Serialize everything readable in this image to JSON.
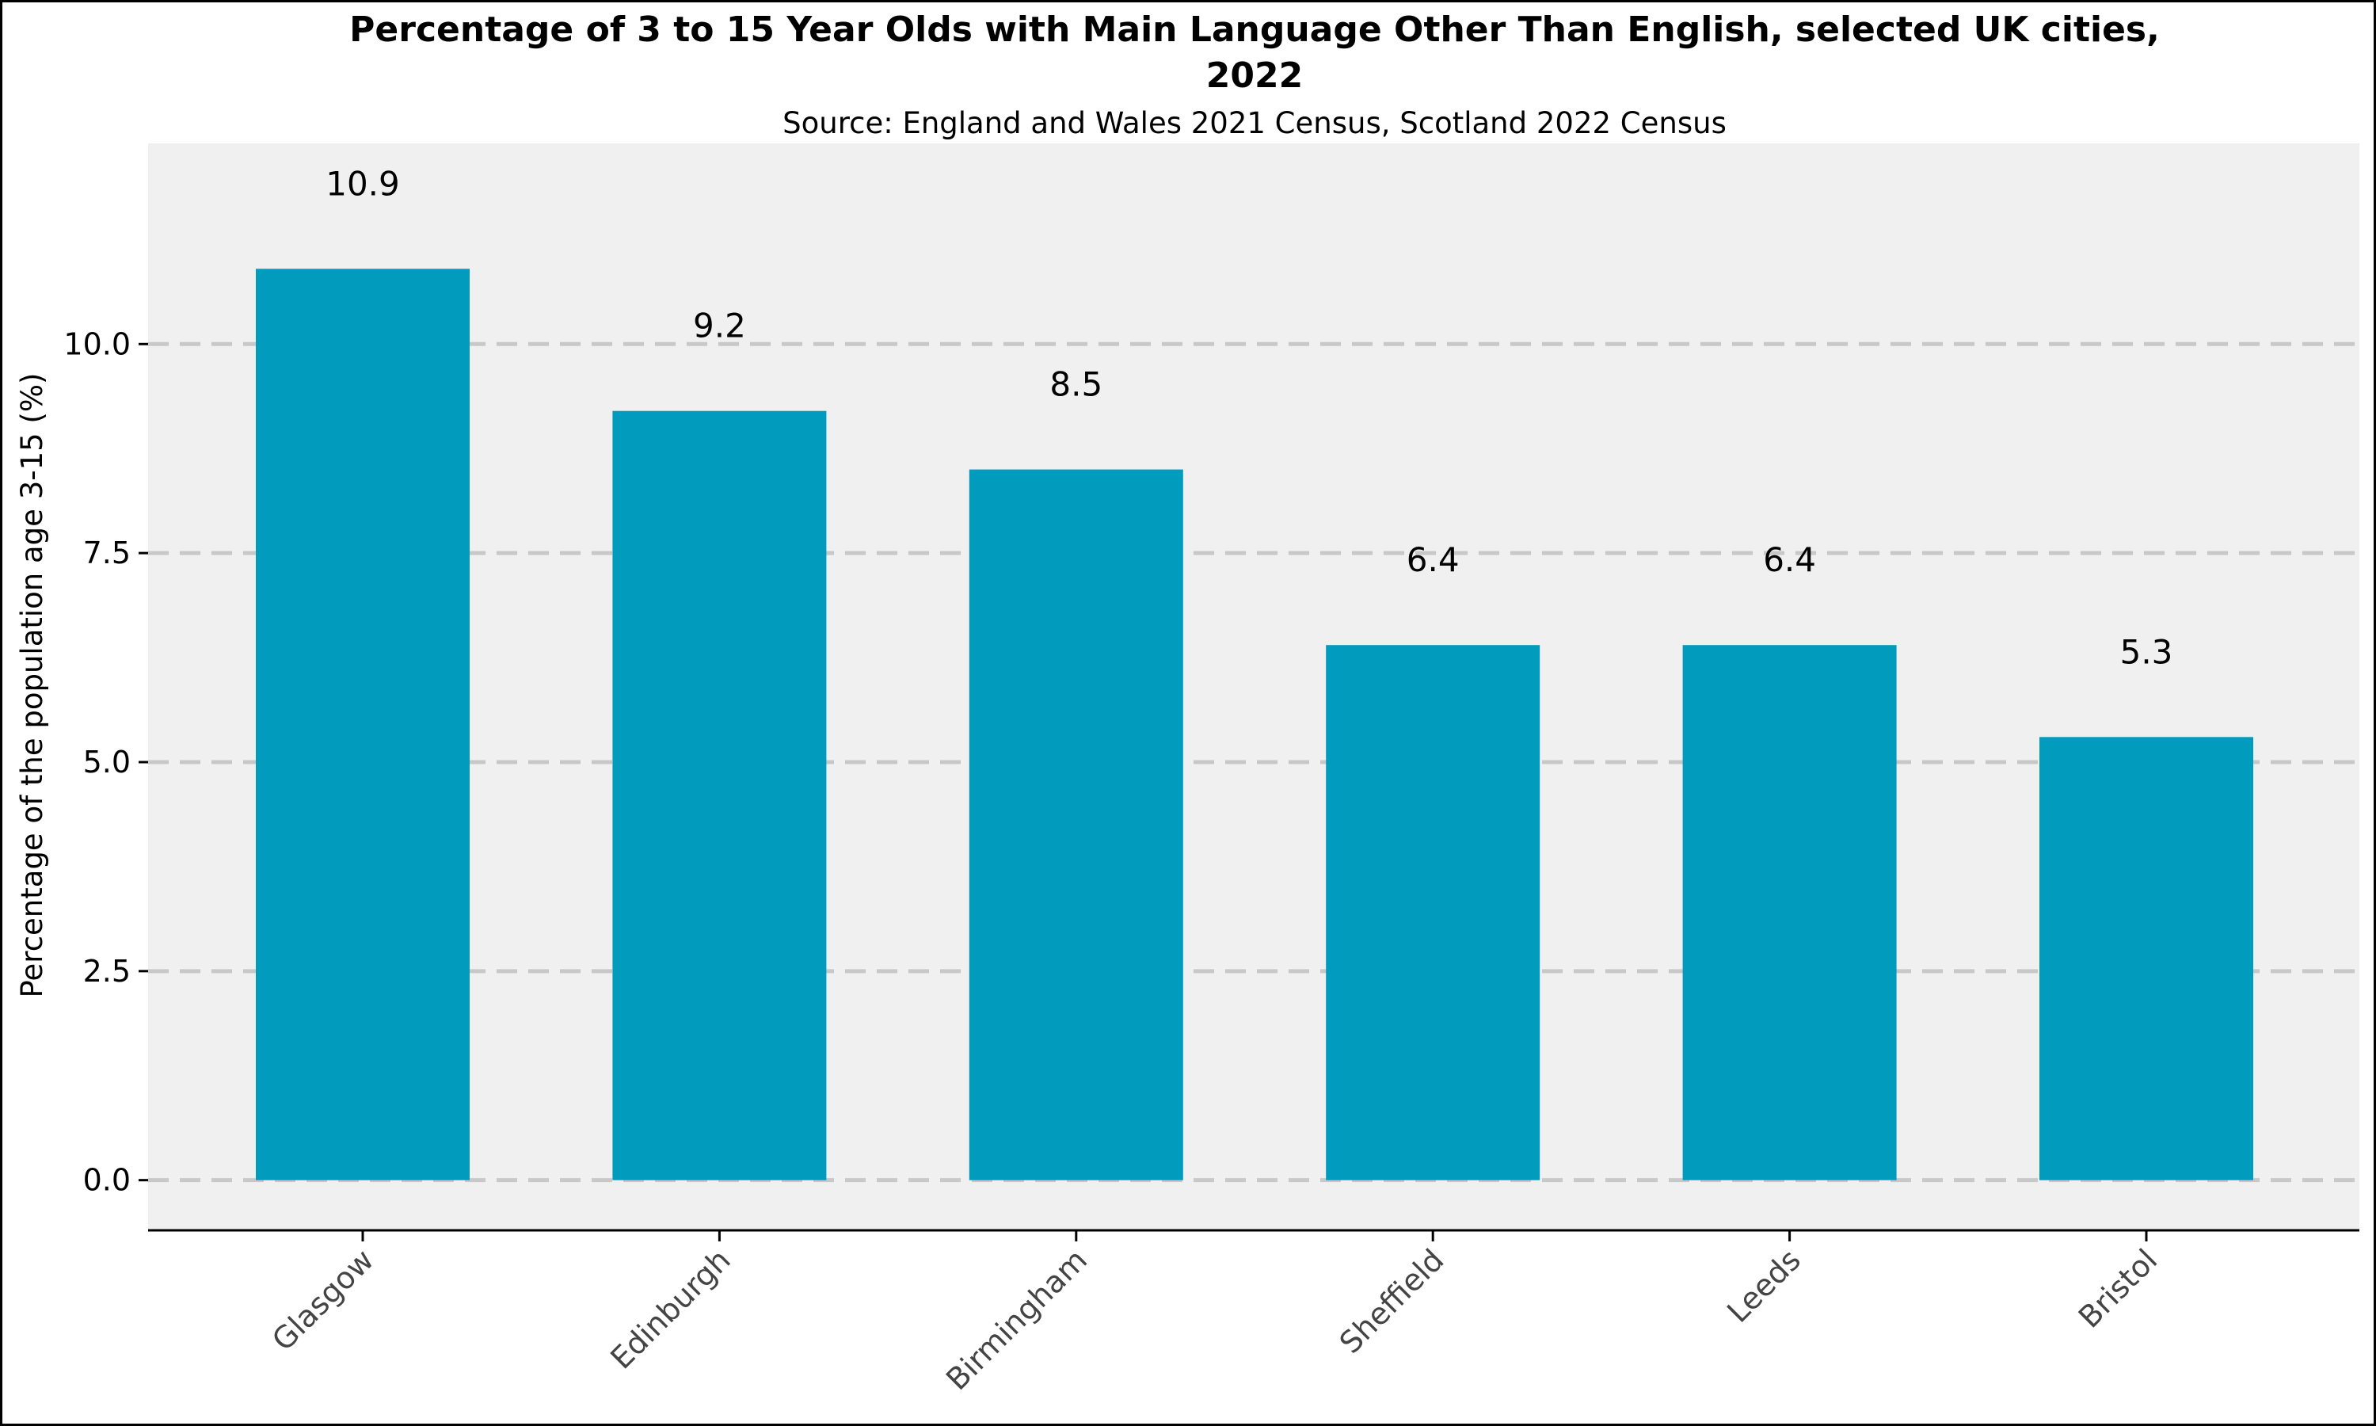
{
  "chart_data": {
    "type": "bar",
    "title_line1": "Percentage of 3 to 15 Year Olds with Main Language Other Than English, selected UK cities,",
    "title_line2": "2022",
    "subtitle": "Source: England and Wales 2021 Census, Scotland 2022 Census",
    "xlabel": "",
    "ylabel": "Percentage of the population age 3-15 (%)",
    "categories": [
      "Glasgow",
      "Edinburgh",
      "Birmingham",
      "Sheffield",
      "Leeds",
      "Bristol"
    ],
    "values": [
      10.9,
      9.2,
      8.5,
      6.4,
      6.4,
      5.3
    ],
    "data_labels": [
      "10.9",
      "9.2",
      "8.5",
      "6.4",
      "6.4",
      "5.3"
    ],
    "ylim": [
      -0.6,
      12.4
    ],
    "yticks": [
      0.0,
      2.5,
      5.0,
      7.5,
      10.0
    ],
    "ytick_labels": [
      "0.0",
      "2.5",
      "5.0",
      "7.5",
      "10.0"
    ],
    "grid": "horizontal dashed",
    "legend": "none",
    "colors": {
      "bar": "#009bbd",
      "panel_background": "#f0f0f0",
      "grid": "#c8c8c8",
      "axis": "#000000",
      "xtick_text": "#444444"
    }
  }
}
